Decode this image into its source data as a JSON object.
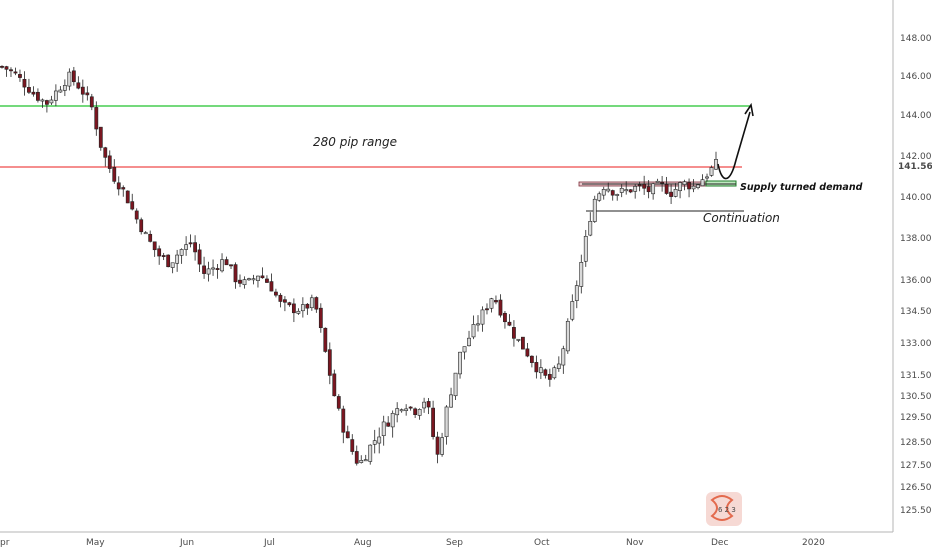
{
  "chart_data": {
    "type": "candlestick",
    "x_ticks": [
      "pr",
      "May",
      "Jun",
      "Jul",
      "Aug",
      "Sep",
      "Oct",
      "Nov",
      "Dec",
      "2020"
    ],
    "y_ticks": [
      "148.000",
      "146.000",
      "144.000",
      "142.000",
      "141.563",
      "140.000",
      "138.000",
      "136.000",
      "134.500",
      "133.000",
      "131.500",
      "130.500",
      "129.500",
      "128.500",
      "127.500",
      "126.500",
      "125.500"
    ],
    "ylim": [
      125,
      149
    ],
    "current_price": "141.563",
    "levels": [
      {
        "name": "green-line",
        "value": 144.5,
        "color": "#22c22e"
      },
      {
        "name": "red-line",
        "value": 141.55,
        "color": "#ef4b4b"
      }
    ],
    "annotations": {
      "range_label": "280 pip range",
      "supply_label": "Supply turned demand",
      "continuation_label": "Continuation"
    },
    "path": [
      146.5,
      146.2,
      145.6,
      145.0,
      144.6,
      145.3,
      146.0,
      145.4,
      144.5,
      142.2,
      141.0,
      140.2,
      139.0,
      138.0,
      137.2,
      136.8,
      137.4,
      137.8,
      136.3,
      136.6,
      137.0,
      136.0,
      135.8,
      136.3,
      135.8,
      134.8,
      134.6,
      134.6,
      135.0,
      132.5,
      130.0,
      128.5,
      127.5,
      128.3,
      129.0,
      129.6,
      130.2,
      129.8,
      130.4,
      127.8,
      130.2,
      132.4,
      133.4,
      134.3,
      135.3,
      134.2,
      133.3,
      132.6,
      131.8,
      131.2,
      132.0,
      134.5,
      137.0,
      139.8,
      140.6,
      140.2,
      140.3,
      140.5,
      140.3,
      140.6,
      140.2,
      140.7,
      140.5,
      141.0,
      141.6
    ],
    "colors": {
      "up": "#d9d9d9",
      "down": "#7a1620",
      "wick": "#222222"
    }
  }
}
